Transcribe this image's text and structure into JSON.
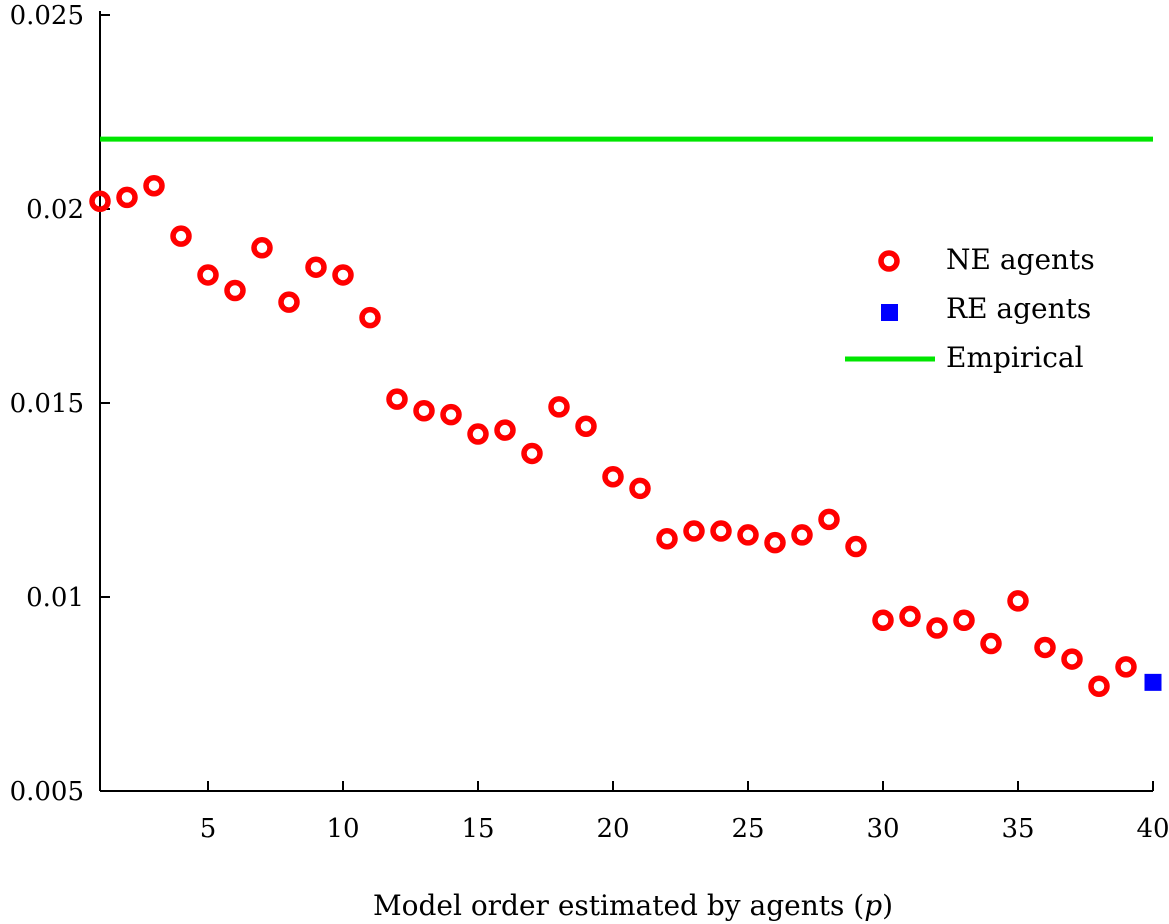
{
  "chart_data": {
    "type": "scatter",
    "title": "",
    "xlabel": "Model order estimated by agents (",
    "xlabel_var": "p",
    "xlabel_suffix": ")",
    "ylabel": "",
    "xlim": [
      1,
      40
    ],
    "ylim": [
      0.005,
      0.025
    ],
    "xticks": [
      5,
      10,
      15,
      20,
      25,
      30,
      35,
      40
    ],
    "xtick_labels": [
      "5",
      "10",
      "15",
      "20",
      "25",
      "30",
      "35",
      "40"
    ],
    "yticks": [
      0.005,
      0.01,
      0.015,
      0.02,
      0.025
    ],
    "ytick_labels": [
      "0.005",
      "0.01",
      "0.015",
      "0.02",
      "0.025"
    ],
    "grid": false,
    "legend_position": "right",
    "series": [
      {
        "name": "NE agents",
        "marker": "circle-open",
        "color": "#ff0000",
        "x": [
          1,
          2,
          3,
          4,
          5,
          6,
          7,
          8,
          9,
          10,
          11,
          12,
          13,
          14,
          15,
          16,
          17,
          18,
          19,
          20,
          21,
          22,
          23,
          24,
          25,
          26,
          27,
          28,
          29,
          30,
          31,
          32,
          33,
          34,
          35,
          36,
          37,
          38,
          39
        ],
        "y": [
          0.0202,
          0.0203,
          0.0206,
          0.0193,
          0.0183,
          0.0179,
          0.019,
          0.0176,
          0.0185,
          0.0183,
          0.0172,
          0.0151,
          0.0148,
          0.0147,
          0.0142,
          0.0143,
          0.0137,
          0.0149,
          0.0144,
          0.0131,
          0.0128,
          0.0115,
          0.0117,
          0.0117,
          0.0116,
          0.0114,
          0.0116,
          0.012,
          0.0113,
          0.0094,
          0.0095,
          0.0092,
          0.0094,
          0.0088,
          0.0099,
          0.0087,
          0.0084,
          0.0077,
          0.0082
        ]
      },
      {
        "name": "RE agents",
        "marker": "square",
        "color": "#0000ff",
        "x": [
          40
        ],
        "y": [
          0.0078
        ]
      },
      {
        "name": "Empirical",
        "marker": "line",
        "color": "#00e600",
        "y_constant": 0.0218
      }
    ]
  }
}
